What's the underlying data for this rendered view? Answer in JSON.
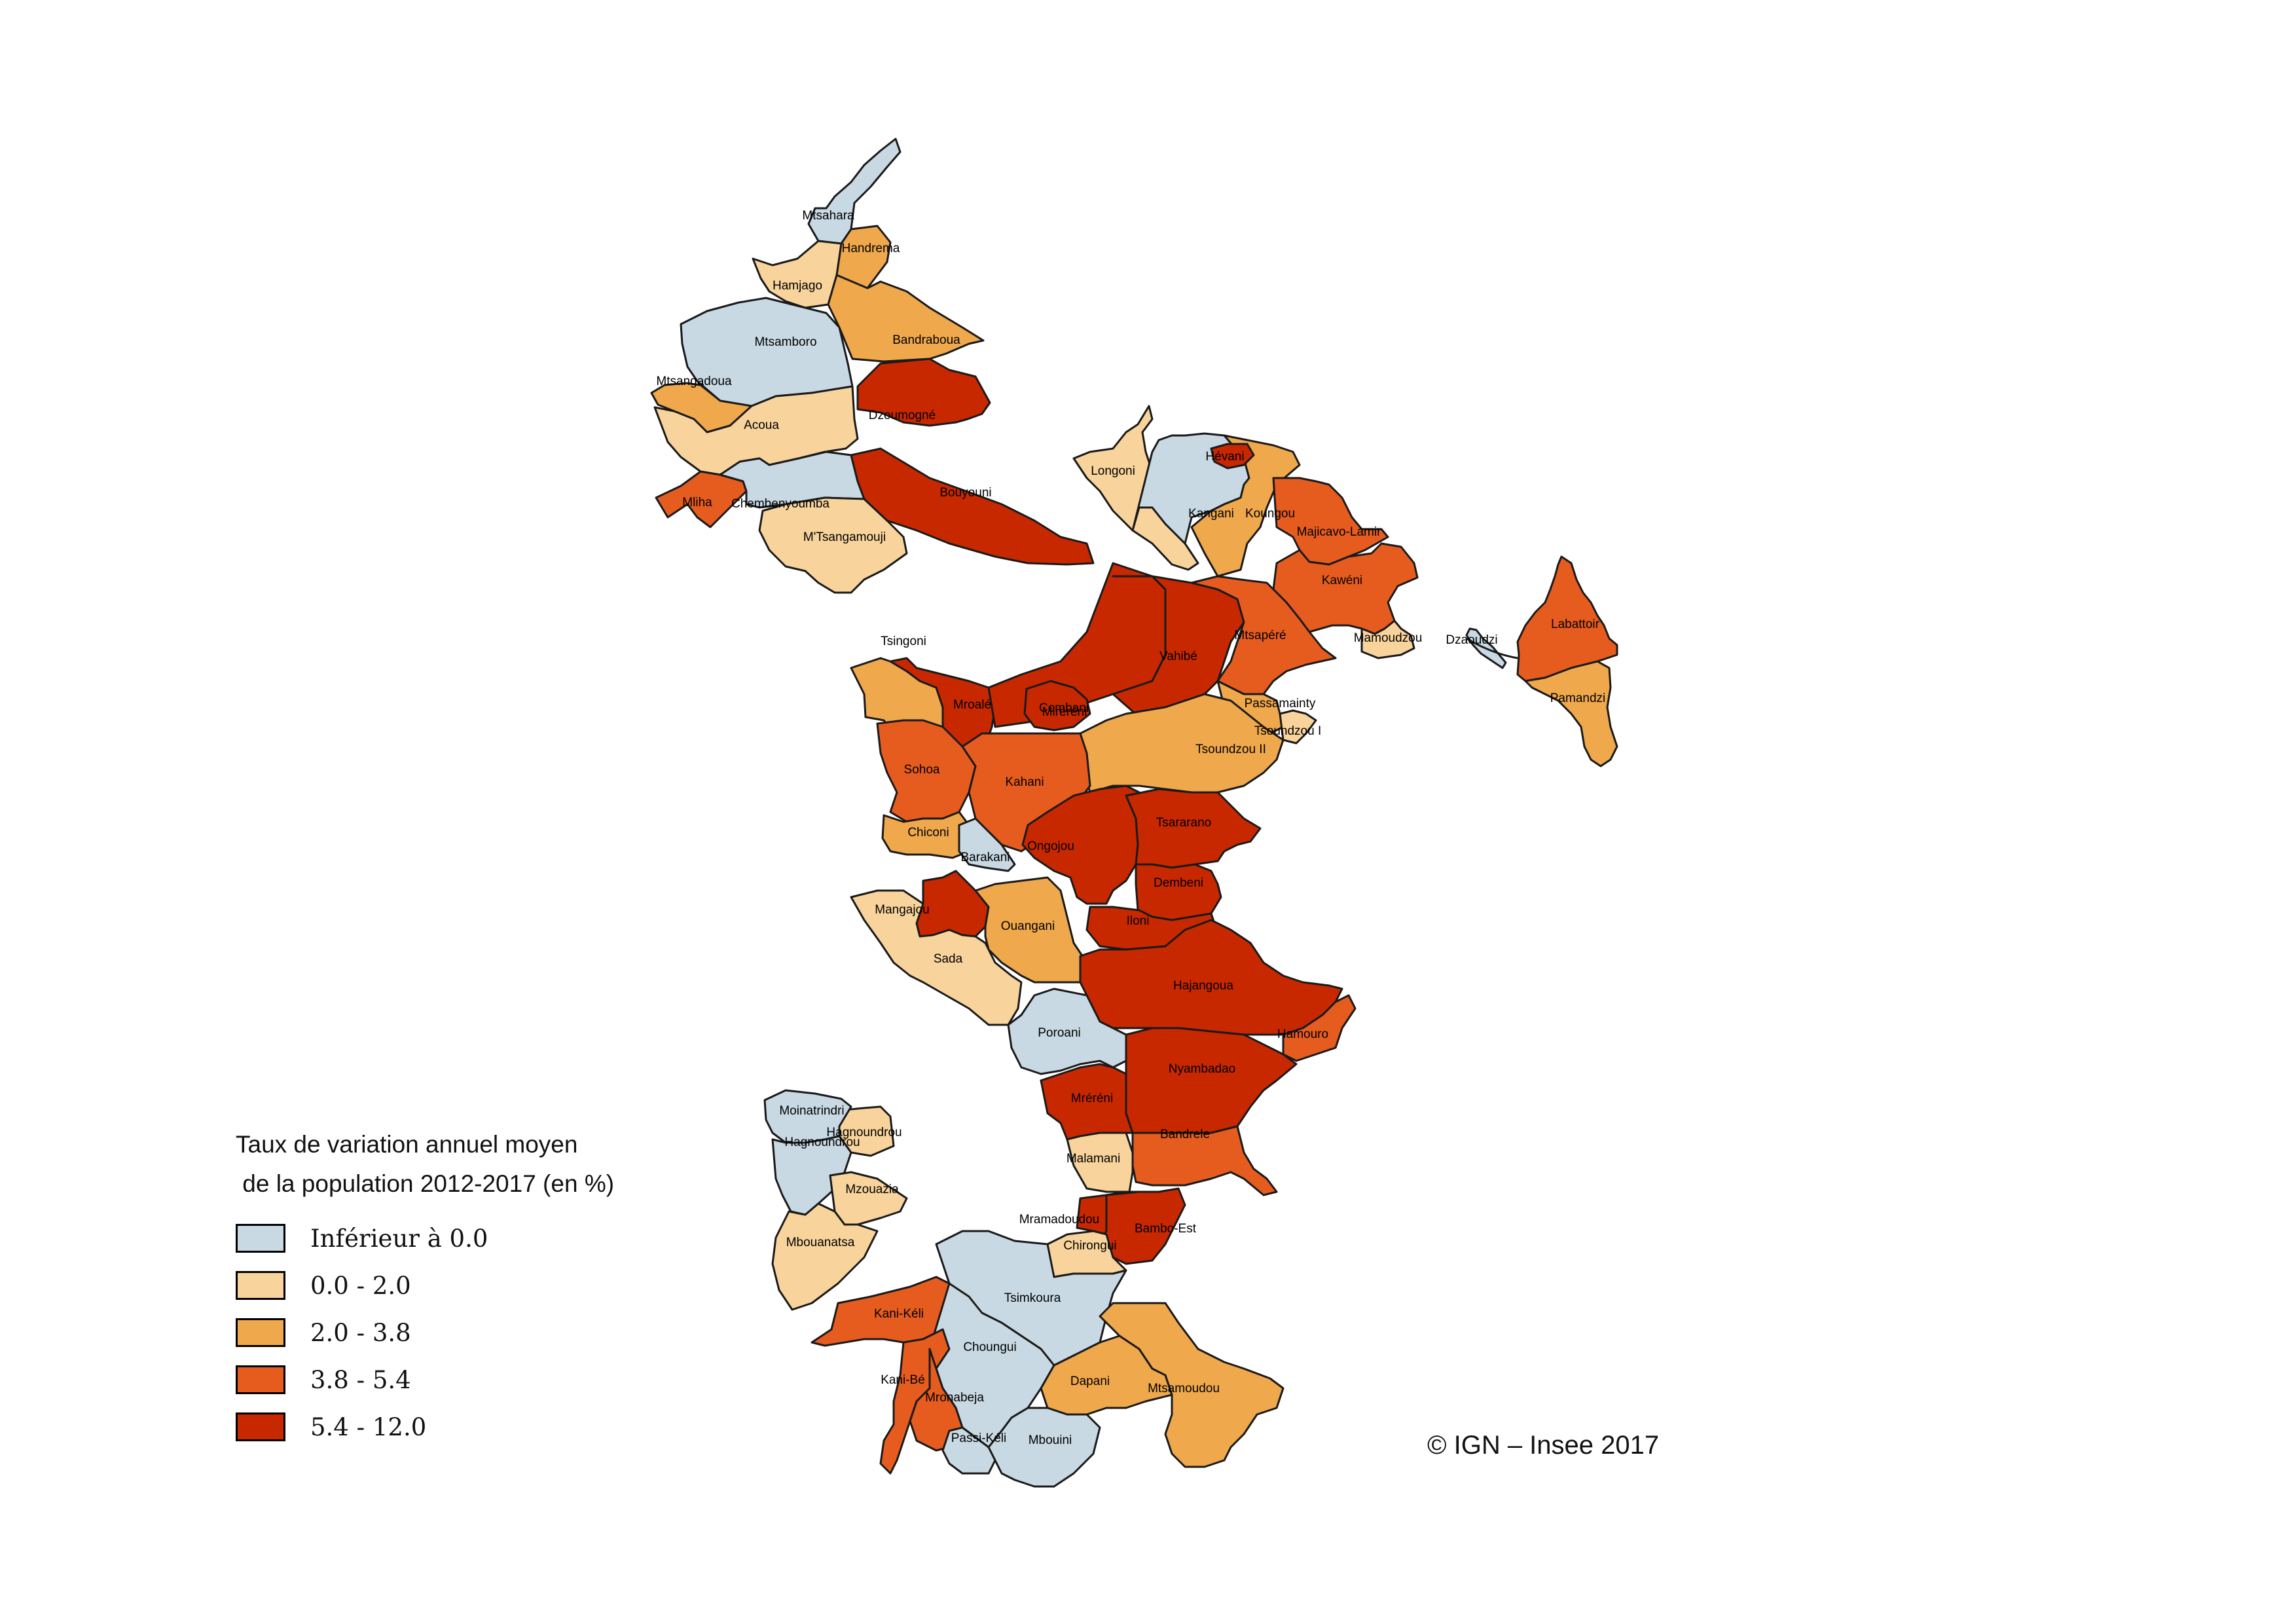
{
  "legend": {
    "title_line1": "Taux de variation annuel moyen",
    "title_line2": " de la population 2012-2017 (en %)",
    "classes": [
      {
        "label": "Inférieur à  0.0",
        "color": "#c8d9e3"
      },
      {
        "label": "0.0 - 2.0",
        "color": "#f8d49c"
      },
      {
        "label": "2.0 - 3.8",
        "color": "#efa84c"
      },
      {
        "label": "3.8 - 5.4",
        "color": "#e65c1f"
      },
      {
        "label": "5.4 - 12.0",
        "color": "#c82800"
      }
    ]
  },
  "copyright": "© IGN – Insee 2017",
  "villages": [
    {
      "name": "Mtsahara",
      "class": 0
    },
    {
      "name": "Handrema",
      "class": 2
    },
    {
      "name": "Hamjago",
      "class": 1
    },
    {
      "name": "Mtsamboro",
      "class": 0
    },
    {
      "name": "Bandraboua",
      "class": 2
    },
    {
      "name": "Mtsangadoua",
      "class": 2
    },
    {
      "name": "Acoua",
      "class": 1
    },
    {
      "name": "Dzoumogné",
      "class": 4
    },
    {
      "name": "Mliha",
      "class": 3
    },
    {
      "name": "Chembenyoumba",
      "class": 0
    },
    {
      "name": "M'Tsangamouji",
      "class": 1
    },
    {
      "name": "Bouyouni",
      "class": 4
    },
    {
      "name": "Longoni",
      "class": 1
    },
    {
      "name": "Kangani",
      "class": 0
    },
    {
      "name": "Hagnoundrou",
      "class": 1
    },
    {
      "name": "Koungou",
      "class": 2
    },
    {
      "name": "Majicavo-Lamir",
      "class": 3
    },
    {
      "name": "Kawéni",
      "class": 3
    },
    {
      "name": "Mamoudzou",
      "class": 1
    },
    {
      "name": "Tsingoni",
      "class": 2
    },
    {
      "name": "Mroalé",
      "class": 4
    },
    {
      "name": "Combani",
      "class": 4
    },
    {
      "name": "Miréréni",
      "class": 4
    },
    {
      "name": "Vahibé",
      "class": 4
    },
    {
      "name": "Mtsapéré",
      "class": 3
    },
    {
      "name": "Passamainty",
      "class": 2
    },
    {
      "name": "Tsoundzou I",
      "class": 1
    },
    {
      "name": "Tsoundzou II",
      "class": 2
    },
    {
      "name": "Sohoa",
      "class": 3
    },
    {
      "name": "Kahani",
      "class": 3
    },
    {
      "name": "Chiconi",
      "class": 2
    },
    {
      "name": "Barakani",
      "class": 0
    },
    {
      "name": "Ongojou",
      "class": 4
    },
    {
      "name": "Tsararano",
      "class": 4
    },
    {
      "name": "Dembeni",
      "class": 4
    },
    {
      "name": "Iloni",
      "class": 4
    },
    {
      "name": "Mangajou",
      "class": 4
    },
    {
      "name": "Ouangani",
      "class": 2
    },
    {
      "name": "Sada",
      "class": 1
    },
    {
      "name": "Hajangoua",
      "class": 4
    },
    {
      "name": "Hamouro",
      "class": 3
    },
    {
      "name": "Poroani",
      "class": 0
    },
    {
      "name": "Nyambadao",
      "class": 4
    },
    {
      "name": "Mréréni",
      "class": 4
    },
    {
      "name": "Bandrele",
      "class": 3
    },
    {
      "name": "Malamani",
      "class": 1
    },
    {
      "name": "Moinatrindri",
      "class": 0
    },
    {
      "name": "Hagnoundrou",
      "class": 0
    },
    {
      "name": "Mzouazia",
      "class": 1
    },
    {
      "name": "Mbouanatsa",
      "class": 1
    },
    {
      "name": "Mramadoudou",
      "class": 4
    },
    {
      "name": "Bambo-Est",
      "class": 4
    },
    {
      "name": "Chirongui",
      "class": 1
    },
    {
      "name": "Tsimkoura",
      "class": 0
    },
    {
      "name": "Kani-Kéli",
      "class": 3
    },
    {
      "name": "Choungui",
      "class": 0
    },
    {
      "name": "Kani-Bé",
      "class": 3
    },
    {
      "name": "Mronabeja",
      "class": 3
    },
    {
      "name": "Dapani",
      "class": 2
    },
    {
      "name": "Mtsamoudou",
      "class": 2
    },
    {
      "name": "Passi-Kéli",
      "class": 0
    },
    {
      "name": "Mbouini",
      "class": 0
    },
    {
      "name": "Hévani",
      "class": 4
    },
    {
      "name": "Dzaoudzi",
      "class": 0
    },
    {
      "name": "Labattoir",
      "class": 3
    },
    {
      "name": "Pamandzi",
      "class": 2
    }
  ]
}
